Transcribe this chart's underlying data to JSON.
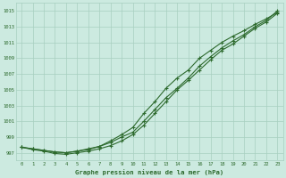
{
  "xlabel": "Graphe pression niveau de la mer (hPa)",
  "x": [
    0,
    1,
    2,
    3,
    4,
    5,
    6,
    7,
    8,
    9,
    10,
    11,
    12,
    13,
    14,
    15,
    16,
    17,
    18,
    19,
    20,
    21,
    22,
    23
  ],
  "line1": [
    997.7,
    997.5,
    997.3,
    997.1,
    997.0,
    997.2,
    997.4,
    997.8,
    998.3,
    999.0,
    999.6,
    1001.0,
    1002.5,
    1004.0,
    1005.2,
    1006.5,
    1008.0,
    1009.2,
    1010.3,
    1011.2,
    1012.0,
    1013.0,
    1013.8,
    1015.0
  ],
  "line2": [
    997.7,
    997.4,
    997.2,
    996.9,
    996.8,
    997.0,
    997.2,
    997.5,
    997.9,
    998.5,
    999.3,
    1000.5,
    1002.0,
    1003.5,
    1005.0,
    1006.2,
    1007.5,
    1008.8,
    1010.0,
    1010.8,
    1011.8,
    1012.8,
    1013.6,
    1014.7
  ],
  "line3": [
    997.7,
    997.5,
    997.3,
    997.1,
    997.0,
    997.2,
    997.5,
    997.8,
    998.5,
    999.3,
    1000.2,
    1002.0,
    1003.5,
    1005.2,
    1006.5,
    1007.5,
    1009.0,
    1010.0,
    1011.0,
    1011.8,
    1012.5,
    1013.3,
    1014.0,
    1014.8
  ],
  "line_color": "#2d6a2d",
  "bg_color": "#cceae0",
  "grid_color": "#a8cfc0",
  "ylim": [
    996,
    1016
  ],
  "yticks": [
    997,
    999,
    1001,
    1003,
    1005,
    1007,
    1009,
    1011,
    1013,
    1015
  ],
  "xlim": [
    -0.5,
    23.5
  ],
  "xticks": [
    0,
    1,
    2,
    3,
    4,
    5,
    6,
    7,
    8,
    9,
    10,
    11,
    12,
    13,
    14,
    15,
    16,
    17,
    18,
    19,
    20,
    21,
    22,
    23
  ]
}
